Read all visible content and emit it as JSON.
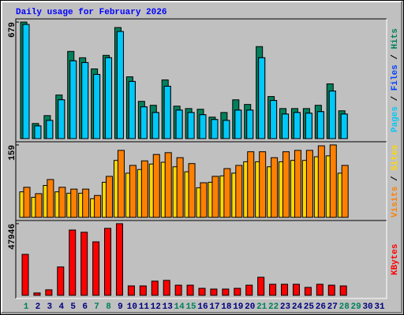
{
  "title": "Daily usage for February 2026",
  "title_color": "#0000ff",
  "legend_separator": "/",
  "chart_data": [
    {
      "type": "bar",
      "ylim": [
        0,
        679
      ],
      "yticks": [
        679
      ],
      "series": [
        {
          "name": "Hits",
          "color": "#00805c",
          "values": [
            679,
            88,
            134,
            254,
            508,
            471,
            406,
            485,
            647,
            360,
            217,
            194,
            342,
            189,
            175,
            171,
            125,
            152,
            226,
            199,
            536,
            245,
            175,
            175,
            175,
            194,
            319,
            162,
            0,
            0,
            0
          ]
        },
        {
          "name": "Files",
          "color": "#0040ff",
          "values": [
            665,
            74,
            106,
            226,
            453,
            443,
            374,
            471,
            624,
            333,
            185,
            152,
            305,
            166,
            152,
            139,
            111,
            106,
            166,
            166,
            471,
            222,
            143,
            152,
            148,
            157,
            277,
            143,
            0,
            0,
            0
          ]
        },
        {
          "name": "Pages",
          "color": "#00c8f8",
          "values": [
            665,
            74,
            106,
            226,
            453,
            443,
            374,
            471,
            624,
            333,
            185,
            152,
            305,
            166,
            152,
            139,
            111,
            106,
            166,
            166,
            471,
            222,
            143,
            152,
            148,
            157,
            277,
            143,
            0,
            0,
            0
          ]
        }
      ]
    },
    {
      "type": "bar",
      "ylim": [
        0,
        159
      ],
      "yticks": [
        159
      ],
      "series": [
        {
          "name": "Sites",
          "color": "#ffd800",
          "values": [
            56,
            44,
            70,
            56,
            53,
            53,
            41,
            77,
            125,
            97,
            105,
            117,
            121,
            111,
            100,
            65,
            77,
            91,
            97,
            122,
            122,
            111,
            122,
            125,
            125,
            133,
            135,
            97,
            0,
            0,
            0
          ]
        },
        {
          "name": "Visits",
          "color": "#ff8000",
          "values": [
            66,
            52,
            83,
            66,
            62,
            62,
            48,
            90,
            147,
            114,
            124,
            138,
            142,
            131,
            118,
            76,
            90,
            107,
            114,
            144,
            144,
            131,
            144,
            147,
            147,
            157,
            159,
            114,
            0,
            0,
            0
          ]
        }
      ]
    },
    {
      "type": "bar",
      "ylim": [
        0,
        47946
      ],
      "yticks": [
        47946
      ],
      "series": [
        {
          "name": "KBytes",
          "color": "#ff0000",
          "values": [
            27400,
            1600,
            3700,
            19000,
            43700,
            42200,
            35800,
            44800,
            47946,
            6300,
            6300,
            9500,
            10000,
            6800,
            6800,
            4700,
            4200,
            4200,
            4700,
            6800,
            12100,
            7400,
            7400,
            7400,
            5300,
            7400,
            6800,
            6300,
            0,
            0,
            0
          ]
        }
      ],
      "categories": [
        1,
        2,
        3,
        4,
        5,
        6,
        7,
        8,
        9,
        10,
        11,
        12,
        13,
        14,
        15,
        16,
        17,
        18,
        19,
        20,
        21,
        22,
        23,
        24,
        25,
        26,
        27,
        28,
        29,
        30,
        31
      ],
      "category_colors": [
        "#00805c",
        "#000080",
        "#000080",
        "#000080",
        "#000080",
        "#000080",
        "#00805c",
        "#00805c",
        "#000080",
        "#000080",
        "#000080",
        "#000080",
        "#000080",
        "#00805c",
        "#00805c",
        "#000080",
        "#000080",
        "#000080",
        "#000080",
        "#000080",
        "#00805c",
        "#00805c",
        "#000080",
        "#000080",
        "#000080",
        "#000080",
        "#000080",
        "#00805c",
        "#00805c",
        "#000080",
        "#000080"
      ]
    }
  ]
}
